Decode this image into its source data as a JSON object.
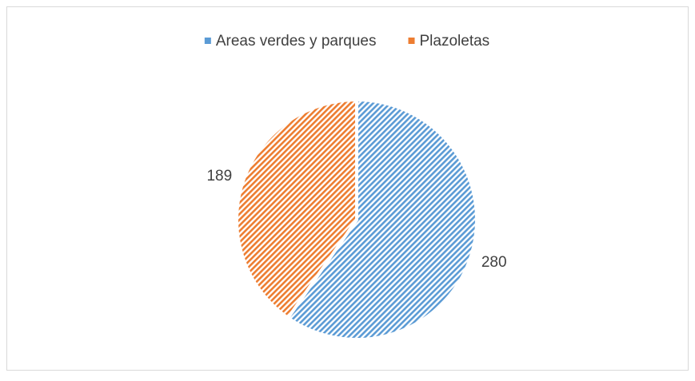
{
  "chart_data": {
    "type": "pie",
    "categories": [
      "Areas verdes y parques",
      "Plazoletas"
    ],
    "values": [
      280,
      189
    ],
    "colors": [
      "#5b9bd5",
      "#ed7d31"
    ],
    "legend": "top"
  }
}
